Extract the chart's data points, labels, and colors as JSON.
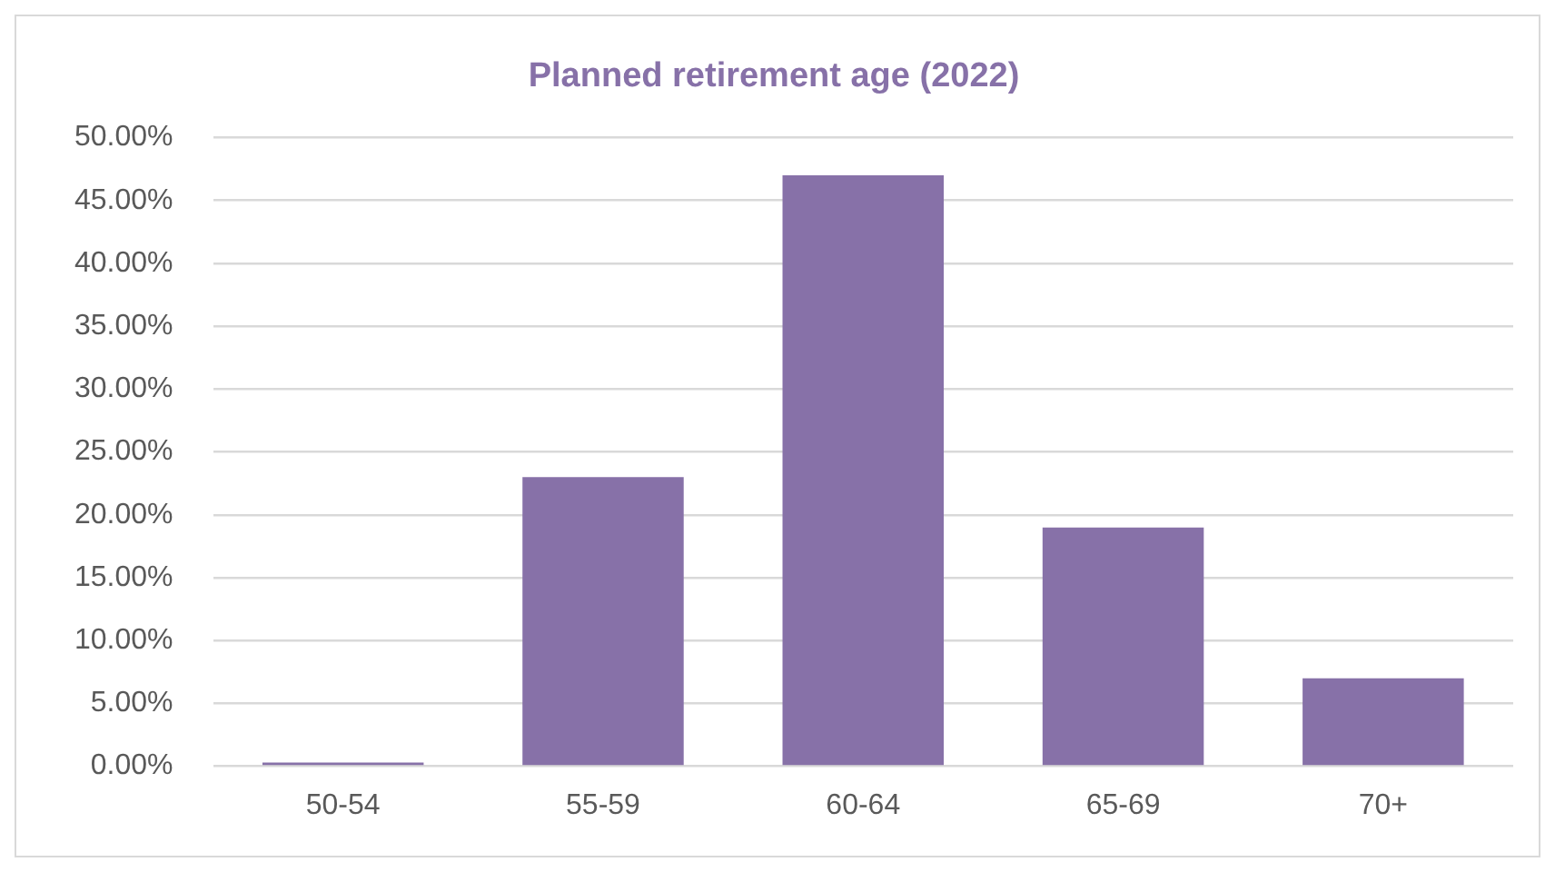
{
  "chart_data": {
    "type": "bar",
    "title": "Planned retirement age (2022)",
    "categories": [
      "50-54",
      "55-59",
      "60-64",
      "65-69",
      "70+"
    ],
    "values": [
      0.3,
      23,
      47,
      19,
      7
    ],
    "color": "#8771a8",
    "ylim": [
      0,
      50
    ],
    "yticks": [
      {
        "value": 0,
        "label": "0.00%"
      },
      {
        "value": 5,
        "label": "5.00%"
      },
      {
        "value": 10,
        "label": "10.00%"
      },
      {
        "value": 15,
        "label": "15.00%"
      },
      {
        "value": 20,
        "label": "20.00%"
      },
      {
        "value": 25,
        "label": "25.00%"
      },
      {
        "value": 30,
        "label": "30.00%"
      },
      {
        "value": 35,
        "label": "35.00%"
      },
      {
        "value": 40,
        "label": "40.00%"
      },
      {
        "value": 45,
        "label": "45.00%"
      },
      {
        "value": 50,
        "label": "50.00%"
      }
    ],
    "grid": "y",
    "legend": false
  }
}
